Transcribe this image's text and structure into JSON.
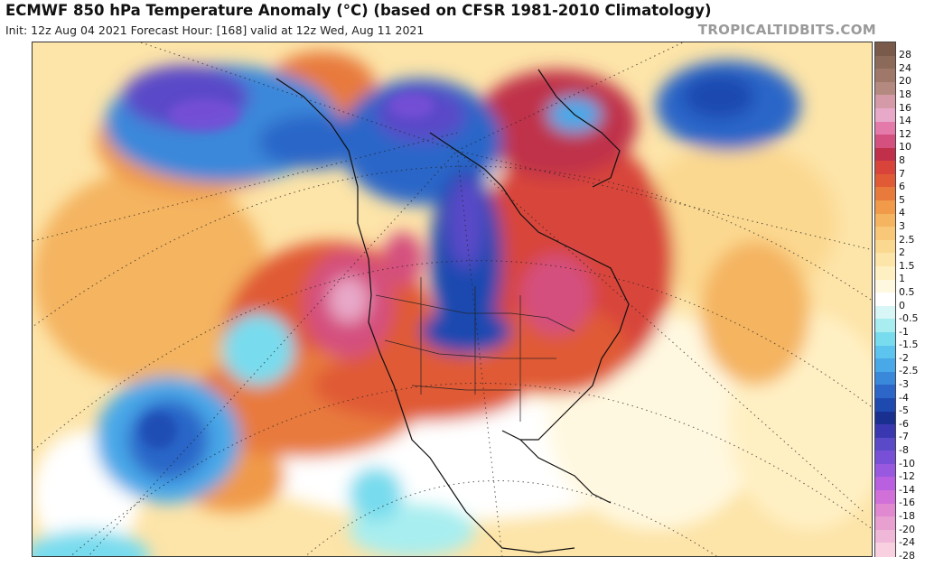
{
  "header": {
    "title": "ECMWF 850 hPa Temperature Anomaly (°C) (based on CFSR 1981-2010 Climatology)",
    "subtitle": "Init: 12z Aug 04 2021   Forecast Hour: [168]   valid at 12z Wed, Aug 11 2021",
    "brand": "TROPICALTIDBITS.COM"
  },
  "colorbar": {
    "labels": [
      "28",
      "24",
      "20",
      "18",
      "16",
      "14",
      "12",
      "10",
      "8",
      "7",
      "6",
      "5",
      "4",
      "3",
      "2.5",
      "2",
      "1.5",
      "1",
      "0.5",
      "0",
      "-0.5",
      "-1",
      "-1.5",
      "-2",
      "-2.5",
      "-3",
      "-4",
      "-5",
      "-6",
      "-7",
      "-8",
      "-10",
      "-12",
      "-14",
      "-16",
      "-18",
      "-20",
      "-24",
      "-28"
    ],
    "colors": [
      "#7a5a4a",
      "#8c6a5a",
      "#a0786a",
      "#b48a80",
      "#d49aa8",
      "#e8a8c8",
      "#e47aaa",
      "#d4507e",
      "#c0304a",
      "#d8443a",
      "#e05a36",
      "#e87a3c",
      "#f09a4a",
      "#f4b460",
      "#f8c878",
      "#fbd890",
      "#fde4a8",
      "#fff0c4",
      "#fff8e0",
      "#ffffff",
      "#d8f6f6",
      "#a8eef0",
      "#78dcee",
      "#5cc4ee",
      "#48a8e8",
      "#3a88da",
      "#2c66c8",
      "#1e4ab0",
      "#1a3090",
      "#3a38b0",
      "#5a4ac8",
      "#7850d8",
      "#9858e0",
      "#b860e0",
      "#d070d8",
      "#e088d0",
      "#e8a0d0",
      "#f0b8d8",
      "#f8d0e0"
    ]
  }
}
